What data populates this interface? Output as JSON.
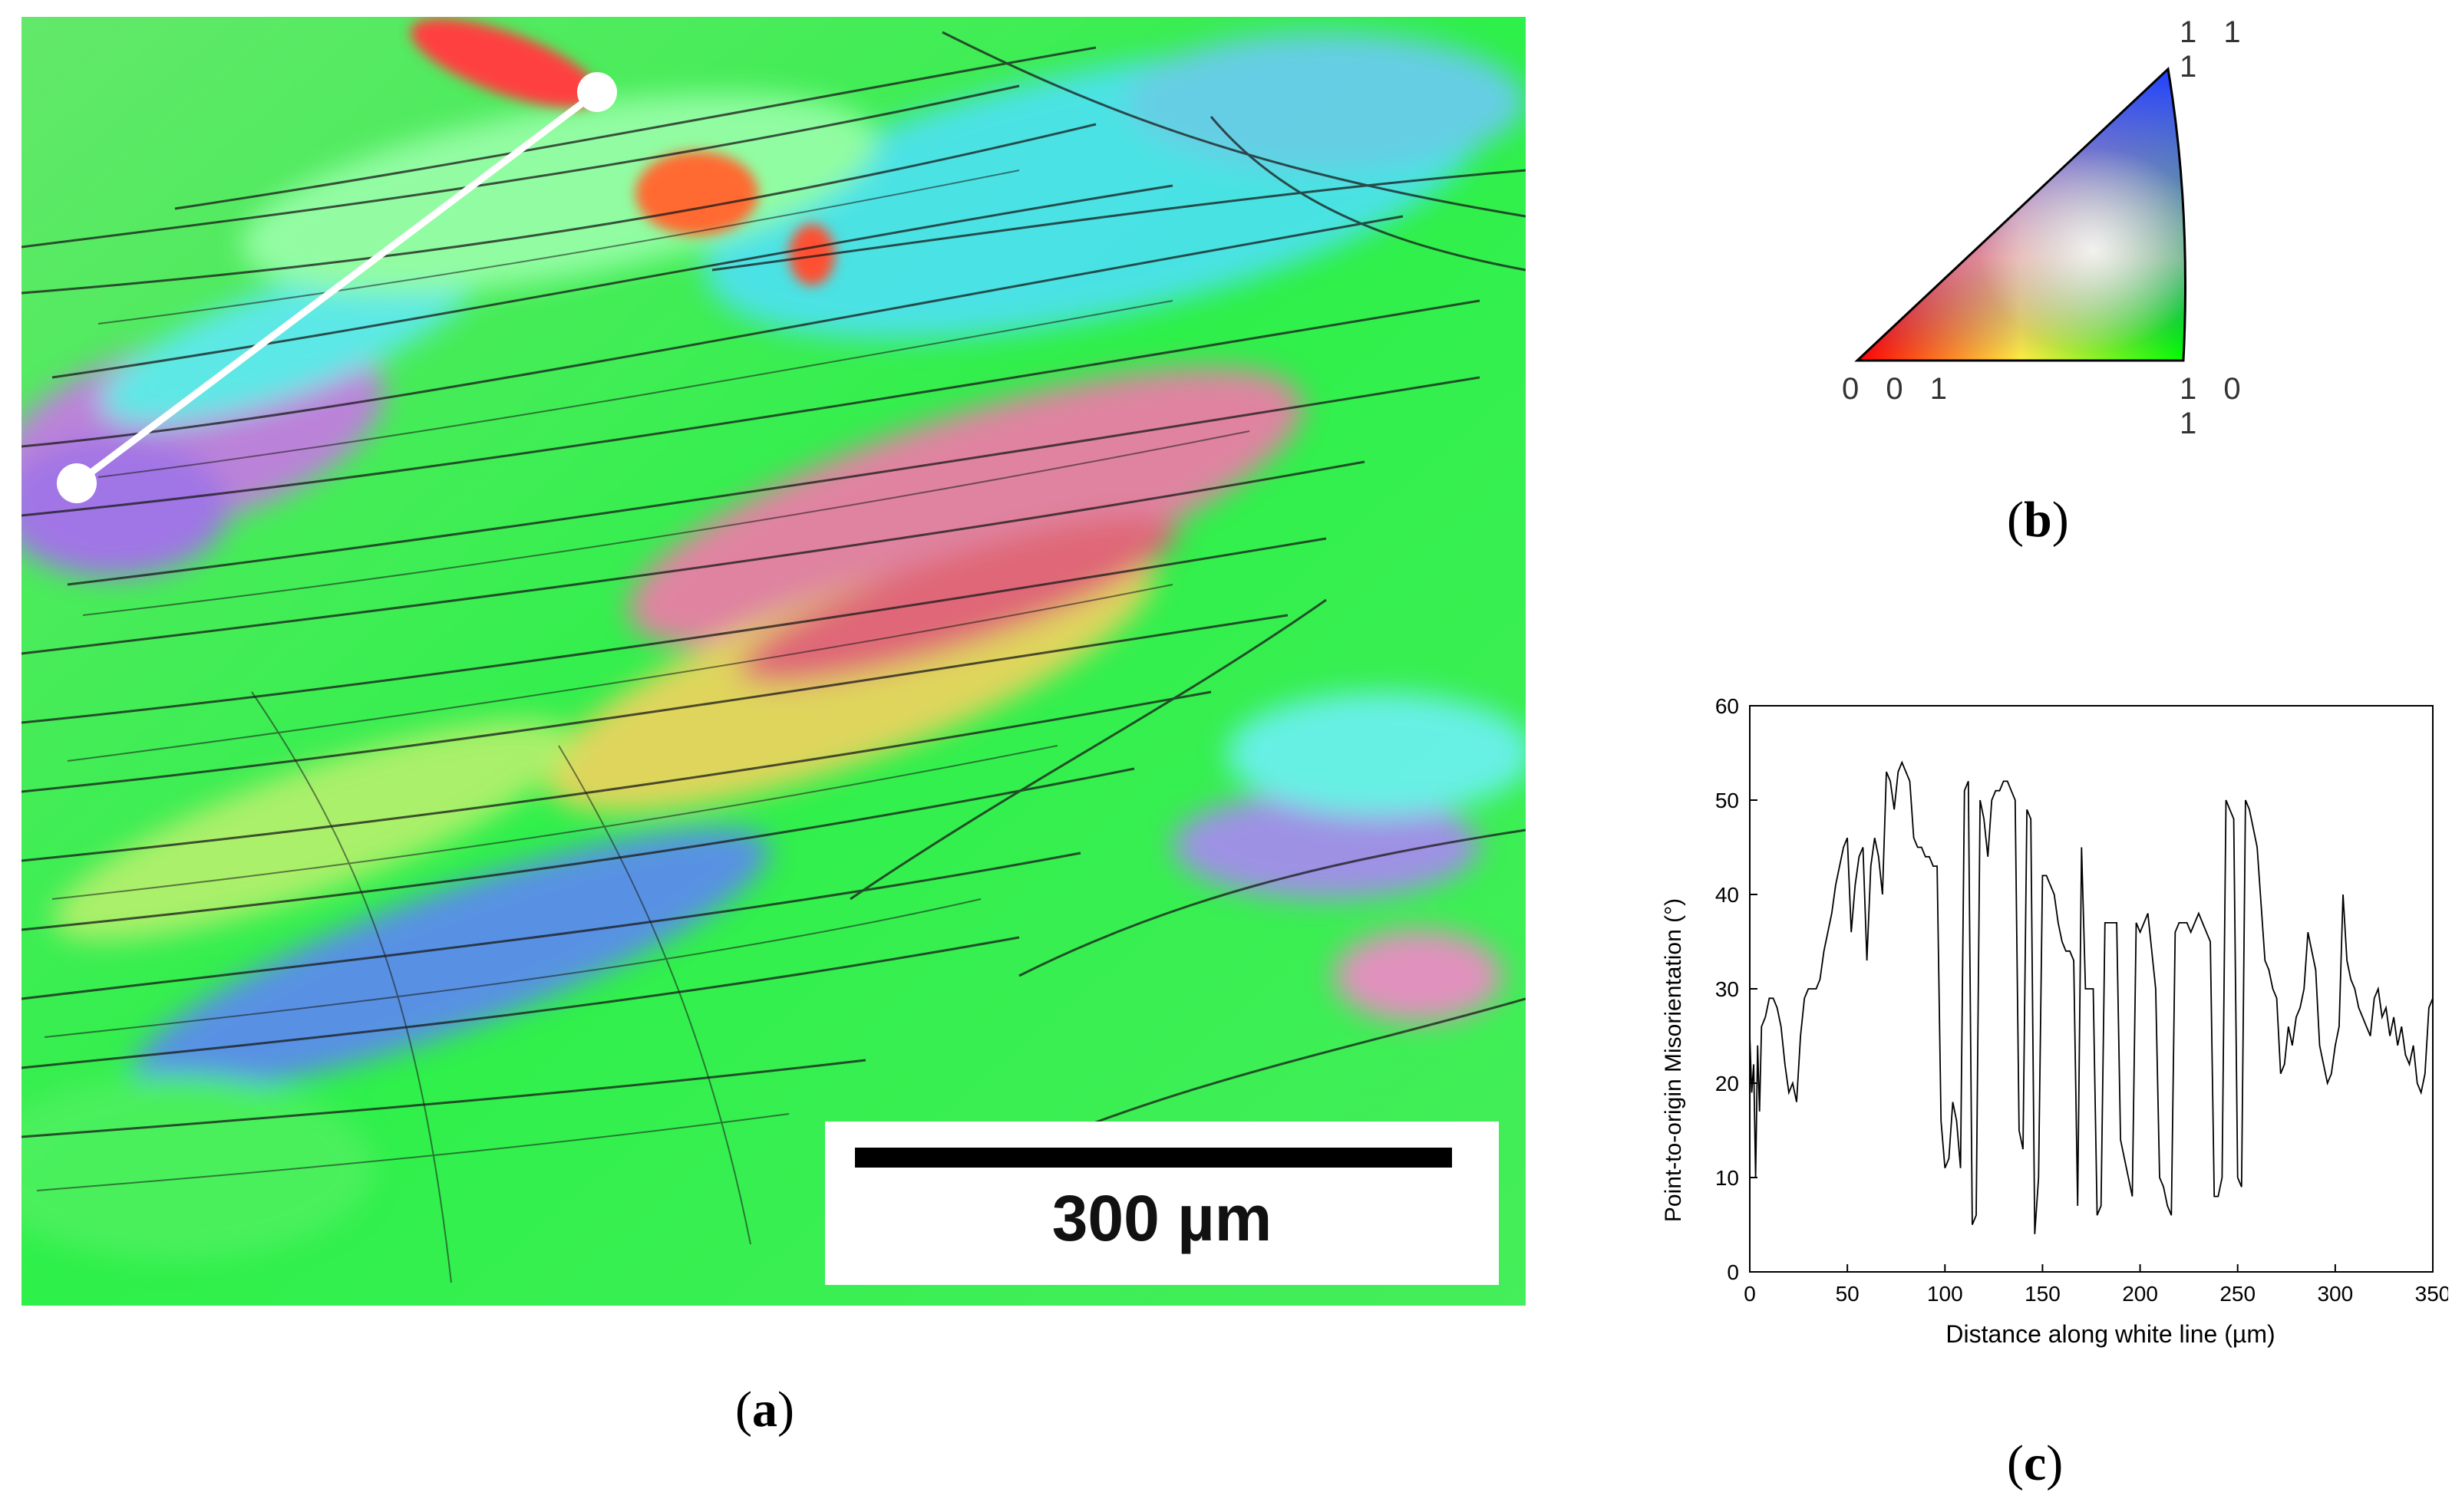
{
  "panels": {
    "a": {
      "label_letter": "a",
      "scale_bar_text": "300 µm"
    },
    "b": {
      "label_letter": "b",
      "corner_111": "1 1 1",
      "corner_001": "0 0 1",
      "corner_101": "1 0 1"
    },
    "c": {
      "label_letter": "c"
    }
  },
  "chart_data": {
    "type": "line",
    "title": "",
    "xlabel": "Distance along white line (µm)",
    "ylabel": "Point-to-origin Misorientation (°)",
    "xlim": [
      0,
      350
    ],
    "ylim": [
      0,
      60
    ],
    "xticks": [
      0,
      50,
      100,
      150,
      200,
      250,
      300,
      350
    ],
    "yticks": [
      0,
      10,
      20,
      30,
      40,
      50,
      60
    ],
    "grid": false,
    "color": "#000000",
    "series": [
      {
        "x": [
          0,
          1,
          2,
          3,
          4,
          5,
          6,
          8,
          10,
          12,
          14,
          16,
          18,
          20,
          22,
          24,
          26,
          28,
          30,
          32,
          34,
          36,
          38,
          40,
          42,
          44,
          46,
          48,
          50,
          52,
          54,
          56,
          58,
          60,
          62,
          64,
          66,
          68,
          70,
          72,
          74,
          76,
          78,
          80,
          82,
          84,
          86,
          88,
          90,
          92,
          94,
          96,
          98,
          100,
          102,
          104,
          106,
          108,
          110,
          112,
          114,
          116,
          118,
          120,
          122,
          124,
          126,
          128,
          130,
          132,
          134,
          136,
          138,
          140,
          142,
          144,
          146,
          148,
          150,
          152,
          154,
          156,
          158,
          160,
          162,
          164,
          166,
          168,
          170,
          172,
          174,
          176,
          178,
          180,
          182,
          184,
          186,
          188,
          190,
          192,
          194,
          196,
          198,
          200,
          202,
          204,
          206,
          208,
          210,
          212,
          214,
          216,
          218,
          220,
          222,
          224,
          226,
          228,
          230,
          232,
          234,
          236,
          238,
          240,
          242,
          244,
          246,
          248,
          250,
          252,
          254,
          256,
          258,
          260,
          262,
          264,
          266,
          268,
          270,
          272,
          274,
          276,
          278,
          280,
          282,
          284,
          286,
          288,
          290,
          292,
          294,
          296,
          298,
          300,
          302,
          304,
          306,
          308,
          310,
          312,
          314,
          316,
          318,
          320,
          322,
          324,
          326,
          328,
          330,
          332,
          334,
          336,
          338,
          340,
          342,
          344,
          346,
          348,
          350
        ],
        "values": [
          25,
          19,
          22,
          10,
          24,
          17,
          26,
          27,
          29,
          29,
          28,
          26,
          22,
          19,
          20,
          18,
          25,
          29,
          30,
          30,
          30,
          31,
          34,
          36,
          38,
          41,
          43,
          45,
          46,
          36,
          41,
          44,
          45,
          33,
          43,
          46,
          44,
          40,
          53,
          52,
          49,
          53,
          54,
          53,
          52,
          46,
          45,
          45,
          44,
          44,
          43,
          43,
          16,
          11,
          12,
          18,
          16,
          11,
          51,
          52,
          5,
          6,
          50,
          48,
          44,
          50,
          51,
          51,
          52,
          52,
          51,
          50,
          15,
          13,
          49,
          48,
          4,
          10,
          42,
          42,
          41,
          40,
          37,
          35,
          34,
          34,
          33,
          7,
          45,
          30,
          30,
          30,
          6,
          7,
          37,
          37,
          37,
          37,
          14,
          12,
          10,
          8,
          37,
          36,
          37,
          38,
          34,
          30,
          10,
          9,
          7,
          6,
          36,
          37,
          37,
          37,
          36,
          37,
          38,
          37,
          36,
          35,
          8,
          8,
          10,
          50,
          49,
          48,
          10,
          9,
          50,
          49,
          47,
          45,
          39,
          33,
          32,
          30,
          29,
          21,
          22,
          26,
          24,
          27,
          28,
          30,
          36,
          34,
          32,
          24,
          22,
          20,
          21,
          24,
          26,
          40,
          33,
          31,
          30,
          28,
          27,
          26,
          25,
          29,
          30,
          27,
          28,
          25,
          27,
          24,
          26,
          23,
          22,
          24,
          20,
          19,
          21,
          28,
          29
        ]
      }
    ]
  }
}
